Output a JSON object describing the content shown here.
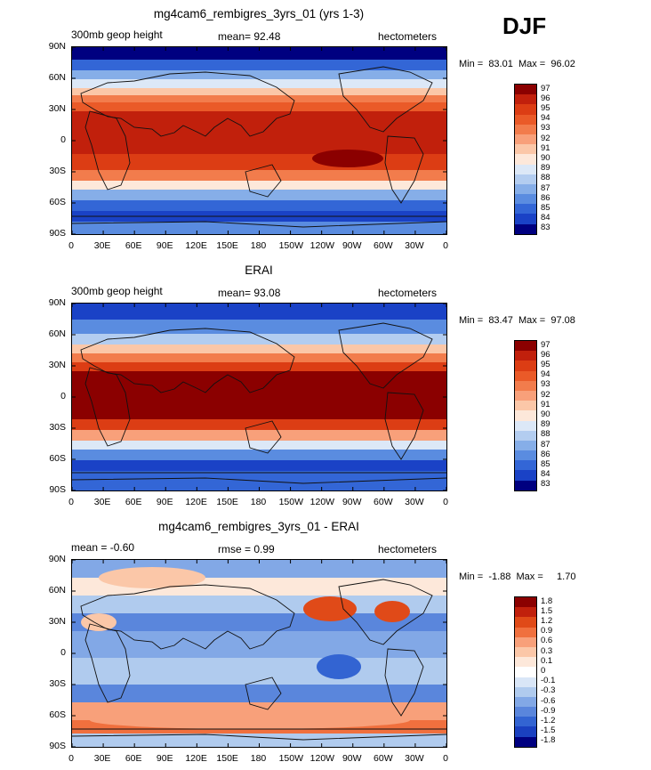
{
  "season": "DJF",
  "panels": [
    {
      "title": "mg4cam6_rembigres_3yrs_01 (yrs 1-3)",
      "left_label": "300mb  geop  height",
      "center_label": "mean=   92.48",
      "right_label": "hectometers",
      "stats": "Min =  83.01  Max =  96.02",
      "legend": [
        "97",
        "96",
        "95",
        "94",
        "93",
        "92",
        "91",
        "90",
        "89",
        "88",
        "87",
        "86",
        "85",
        "84",
        "83"
      ]
    },
    {
      "title": "ERAI",
      "left_label": "300mb  geop  height",
      "center_label": "mean=   93.08",
      "right_label": "hectometers",
      "stats": "Min =  83.47  Max =  97.08",
      "legend": [
        "97",
        "96",
        "95",
        "94",
        "93",
        "92",
        "91",
        "90",
        "89",
        "88",
        "87",
        "86",
        "85",
        "84",
        "83"
      ]
    },
    {
      "title": "mg4cam6_rembigres_3yrs_01 - ERAI",
      "left_label": "mean =   -0.60",
      "center_label": "rmse =     0.99",
      "right_label": "hectometers",
      "stats": "Min =  -1.88  Max =     1.70",
      "legend": [
        "1.8",
        "1.5",
        "1.2",
        "0.9",
        "0.6",
        "0.3",
        "0.1",
        "0",
        "-0.1",
        "-0.3",
        "-0.6",
        "-0.9",
        "-1.2",
        "-1.5",
        "-1.8"
      ]
    }
  ],
  "x_ticks": [
    "0",
    "30E",
    "60E",
    "90E",
    "120E",
    "150E",
    "180",
    "150W",
    "120W",
    "90W",
    "60W",
    "30W",
    "0"
  ],
  "y_ticks": [
    "90N",
    "60N",
    "30N",
    "0",
    "30S",
    "60S",
    "90S"
  ],
  "colors": {
    "abs_scale": [
      "#8b0000",
      "#c1200c",
      "#dc3d14",
      "#ea5a28",
      "#f27c4c",
      "#f8a07a",
      "#fbc7a8",
      "#fde8da",
      "#dce8f7",
      "#b3cdf0",
      "#86aee8",
      "#5a8ce0",
      "#3366d6",
      "#1a42c6",
      "#000080"
    ],
    "diff_scale": [
      "#8b0000",
      "#c1200c",
      "#e04a18",
      "#f0703e",
      "#f8a07a",
      "#fbc7a8",
      "#fde8da",
      "#ffffff",
      "#d9e6f7",
      "#b0cbee",
      "#82a8e6",
      "#5a86dc",
      "#3364d2",
      "#1a40c0",
      "#000080"
    ]
  }
}
